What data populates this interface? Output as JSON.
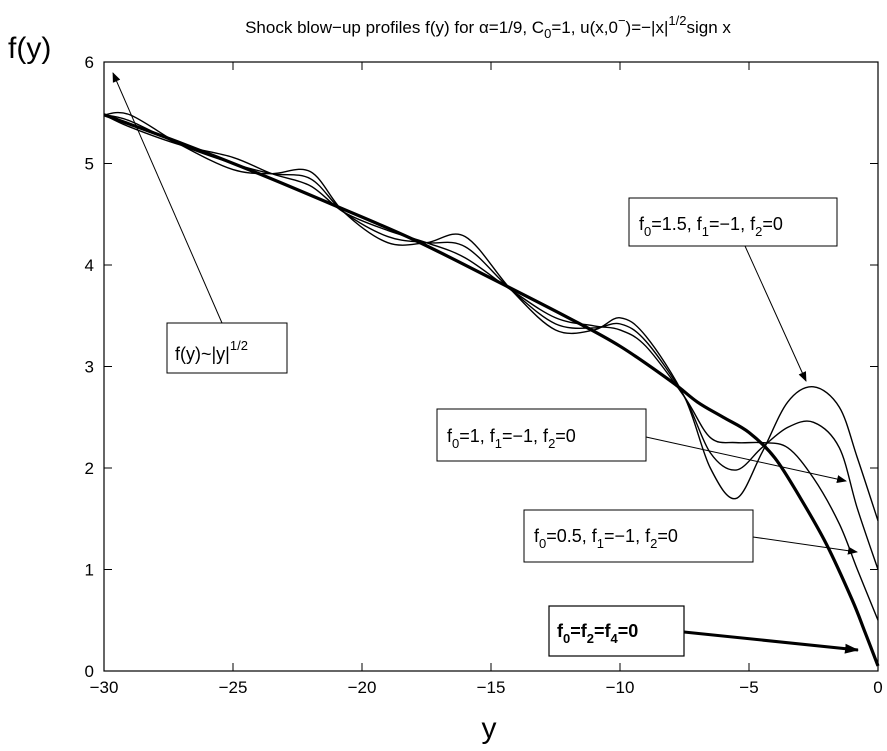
{
  "chart_data": {
    "type": "line",
    "title": {
      "main": "Shock blow−up profiles f(y) for ",
      "alpha": "α=1/9, C",
      "alpha_sub": "0",
      "c0_rest": "=1, u(x,0",
      "sup_minus": "−",
      "u_rest": ")=−|x|",
      "sup_half": "1/2",
      "tail": "sign x"
    },
    "xlabel": "y",
    "ylabel": "f(y)",
    "xlim": [
      -30,
      0
    ],
    "ylim": [
      0,
      6
    ],
    "xticks": [
      -30,
      -25,
      -20,
      -15,
      -10,
      -5,
      0
    ],
    "yticks": [
      0,
      1,
      2,
      3,
      4,
      5,
      6
    ],
    "xtick_labels": [
      "−30",
      "−25",
      "−20",
      "−15",
      "−10",
      "−5",
      "0"
    ],
    "ytick_labels": [
      "0",
      "1",
      "2",
      "3",
      "4",
      "5",
      "6"
    ],
    "grid": false,
    "series": [
      {
        "bold": true,
        "x": [
          -30,
          -27,
          -24,
          -21,
          -18,
          -15,
          -12,
          -10,
          -8,
          -7,
          -6,
          -5,
          -4,
          -3,
          -2,
          -1,
          -0.5,
          0
        ],
        "y": [
          5.48,
          5.2,
          4.9,
          4.58,
          4.25,
          3.87,
          3.48,
          3.2,
          2.85,
          2.65,
          2.5,
          2.35,
          2.1,
          1.7,
          1.25,
          0.7,
          0.38,
          0.05
        ]
      },
      {
        "bold": false,
        "x": [
          -30,
          -29,
          -27,
          -25,
          -23.5,
          -22,
          -20.7,
          -19,
          -17.5,
          -16,
          -14.2,
          -12.5,
          -11,
          -10,
          -9,
          -7.5,
          -6.5,
          -5.5,
          -4.5,
          -3.5,
          -2.5,
          -1.5,
          -0.8,
          0
        ],
        "y": [
          5.48,
          5.36,
          5.18,
          5.06,
          4.9,
          4.78,
          4.52,
          4.34,
          4.22,
          4.07,
          3.75,
          3.48,
          3.4,
          3.36,
          3.2,
          2.7,
          2.3,
          2.25,
          2.25,
          2.2,
          1.9,
          1.45,
          1.0,
          0.5
        ]
      },
      {
        "bold": false,
        "x": [
          -30,
          -29,
          -27,
          -25,
          -23.5,
          -22,
          -20.7,
          -19,
          -17.5,
          -16,
          -14.2,
          -12.5,
          -11,
          -10,
          -9,
          -7.5,
          -6.5,
          -5.5,
          -4.5,
          -3.5,
          -2.5,
          -1.5,
          -0.8,
          0
        ],
        "y": [
          5.48,
          5.42,
          5.18,
          5.0,
          4.9,
          4.85,
          4.52,
          4.28,
          4.22,
          4.18,
          3.75,
          3.42,
          3.38,
          3.42,
          3.25,
          2.7,
          2.15,
          1.98,
          2.2,
          2.4,
          2.45,
          2.2,
          1.6,
          1.0
        ]
      },
      {
        "bold": false,
        "x": [
          -30,
          -29,
          -27,
          -25,
          -23.5,
          -22,
          -20.7,
          -19,
          -17.5,
          -16,
          -14.2,
          -12.5,
          -11,
          -10,
          -9,
          -7.5,
          -6.5,
          -5.5,
          -4.5,
          -3.5,
          -2.5,
          -1.5,
          -0.8,
          0
        ],
        "y": [
          5.48,
          5.48,
          5.18,
          4.94,
          4.9,
          4.92,
          4.52,
          4.22,
          4.22,
          4.28,
          3.75,
          3.36,
          3.36,
          3.48,
          3.3,
          2.7,
          2.0,
          1.7,
          2.15,
          2.65,
          2.8,
          2.6,
          2.1,
          1.48
        ]
      }
    ],
    "annotations": [
      {
        "id": "ann-sqrt",
        "text_main": "f(y)~|y|",
        "text_sup": "1/2",
        "bold": false
      },
      {
        "id": "ann-f015",
        "text_a": "f",
        "sub_a": "0",
        "text_b": "=1.5, f",
        "sub_b": "1",
        "text_c": "=−1, f",
        "sub_c": "2",
        "text_d": "=0",
        "bold": false
      },
      {
        "id": "ann-f01",
        "text_a": "f",
        "sub_a": "0",
        "text_b": "=1, f",
        "sub_b": "1",
        "text_c": "=−1, f",
        "sub_c": "2",
        "text_d": "=0",
        "bold": false
      },
      {
        "id": "ann-f005",
        "text_a": "f",
        "sub_a": "0",
        "text_b": "=0.5, f",
        "sub_b": "1",
        "text_c": "=−1, f",
        "sub_c": "2",
        "text_d": "=0",
        "bold": false
      },
      {
        "id": "ann-fzero",
        "text_a": "f",
        "sub_a": "0",
        "text_b": "=f",
        "sub_b": "2",
        "text_c": "=f",
        "sub_c": "4",
        "text_d": "=0",
        "bold": true
      }
    ]
  }
}
